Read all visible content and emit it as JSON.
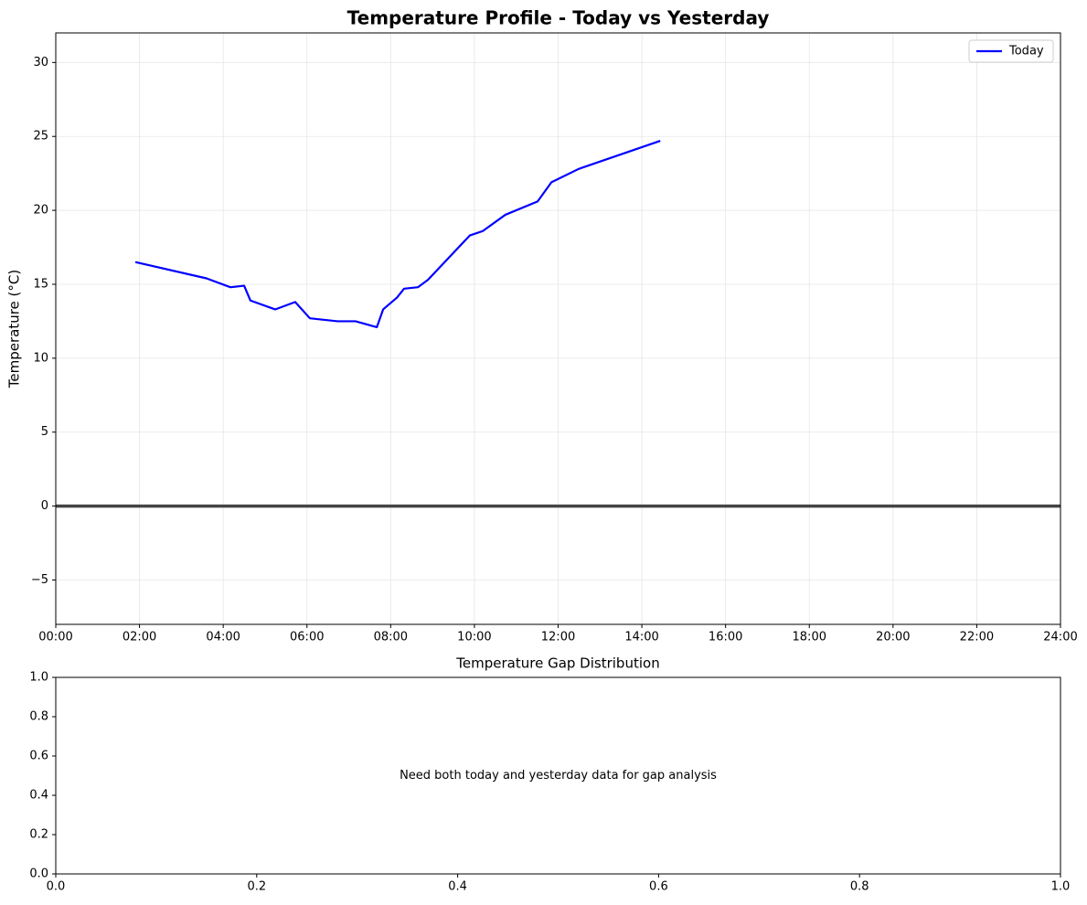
{
  "chart_data": [
    {
      "type": "line",
      "title": "Temperature Profile - Today vs Yesterday",
      "y_label": "Temperature (°C)",
      "x": [
        1.9,
        3.6,
        4.17,
        4.5,
        4.65,
        5.24,
        5.72,
        6.07,
        6.73,
        7.16,
        7.67,
        7.82,
        8.15,
        8.32,
        8.65,
        8.89,
        9.89,
        10.2,
        10.74,
        11.51,
        11.84,
        12.49,
        14.44
      ],
      "series": [
        {
          "name": "Today",
          "color": "#0000ff",
          "values": [
            16.5,
            15.4,
            14.8,
            14.9,
            13.9,
            13.3,
            13.8,
            12.7,
            12.5,
            12.5,
            12.1,
            13.3,
            14.1,
            14.7,
            14.8,
            15.3,
            18.3,
            18.6,
            19.7,
            20.6,
            21.9,
            22.8,
            24.7
          ]
        }
      ],
      "xlim": [
        0,
        24
      ],
      "xticks": [
        {
          "value": 0,
          "label": "00:00"
        },
        {
          "value": 2,
          "label": "02:00"
        },
        {
          "value": 4,
          "label": "04:00"
        },
        {
          "value": 6,
          "label": "06:00"
        },
        {
          "value": 8,
          "label": "08:00"
        },
        {
          "value": 10,
          "label": "10:00"
        },
        {
          "value": 12,
          "label": "12:00"
        },
        {
          "value": 14,
          "label": "14:00"
        },
        {
          "value": 16,
          "label": "16:00"
        },
        {
          "value": 18,
          "label": "18:00"
        },
        {
          "value": 20,
          "label": "20:00"
        },
        {
          "value": 22,
          "label": "22:00"
        },
        {
          "value": 24,
          "label": "24:00"
        }
      ],
      "ylim": [
        -8,
        32
      ],
      "yticks": [
        {
          "value": -5,
          "label": "−5"
        },
        0,
        5,
        10,
        15,
        20,
        25,
        30
      ],
      "grid": true,
      "hline": 0,
      "legend": "upper right"
    },
    {
      "type": "empty",
      "title": "Temperature Gap Distribution",
      "message": "Need both today and yesterday data for gap analysis",
      "xlim": [
        0,
        1
      ],
      "ylim": [
        0,
        1
      ],
      "xticks": [
        {
          "value": 0,
          "label": "0.0"
        },
        {
          "value": 0.2,
          "label": "0.2"
        },
        {
          "value": 0.4,
          "label": "0.4"
        },
        {
          "value": 0.6,
          "label": "0.6"
        },
        {
          "value": 0.8,
          "label": "0.8"
        },
        {
          "value": 1,
          "label": "1.0"
        }
      ],
      "yticks": [
        {
          "value": 0,
          "label": "0.0"
        },
        {
          "value": 0.2,
          "label": "0.2"
        },
        {
          "value": 0.4,
          "label": "0.4"
        },
        {
          "value": 0.6,
          "label": "0.6"
        },
        {
          "value": 0.8,
          "label": "0.8"
        },
        {
          "value": 1,
          "label": "1.0"
        }
      ],
      "grid": false
    }
  ]
}
